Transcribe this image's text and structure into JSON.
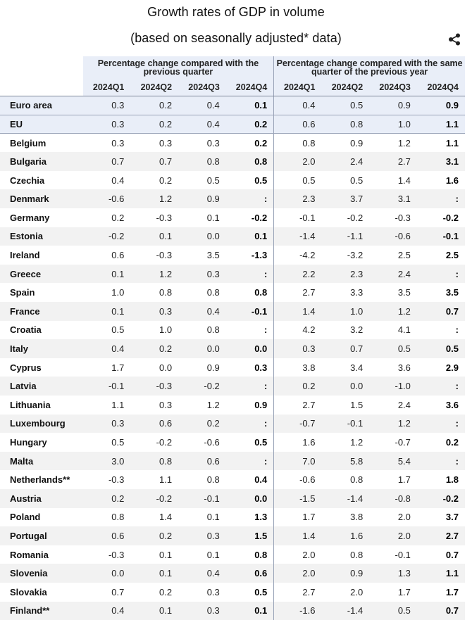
{
  "title": "Growth rates of GDP in volume",
  "subtitle": "(based on seasonally adjusted* data)",
  "share_icon": "share-icon",
  "group_headers": [
    "Percentage change compared with the previous quarter",
    "Percentage change compared with the same quarter of the previous year"
  ],
  "quarters": [
    "2024Q1",
    "2024Q2",
    "2024Q3",
    "2024Q4"
  ],
  "rows": [
    {
      "country": "Euro area",
      "qoq": [
        "0.3",
        "0.2",
        "0.4",
        "0.1"
      ],
      "yoy": [
        "0.4",
        "0.5",
        "0.9",
        "0.9"
      ]
    },
    {
      "country": "EU",
      "qoq": [
        "0.3",
        "0.2",
        "0.4",
        "0.2"
      ],
      "yoy": [
        "0.6",
        "0.8",
        "1.0",
        "1.1"
      ]
    },
    {
      "country": "Belgium",
      "qoq": [
        "0.3",
        "0.3",
        "0.3",
        "0.2"
      ],
      "yoy": [
        "0.8",
        "0.9",
        "1.2",
        "1.1"
      ]
    },
    {
      "country": "Bulgaria",
      "qoq": [
        "0.7",
        "0.7",
        "0.8",
        "0.8"
      ],
      "yoy": [
        "2.0",
        "2.4",
        "2.7",
        "3.1"
      ]
    },
    {
      "country": "Czechia",
      "qoq": [
        "0.4",
        "0.2",
        "0.5",
        "0.5"
      ],
      "yoy": [
        "0.5",
        "0.5",
        "1.4",
        "1.6"
      ]
    },
    {
      "country": "Denmark",
      "qoq": [
        "-0.6",
        "1.2",
        "0.9",
        ":"
      ],
      "yoy": [
        "2.3",
        "3.7",
        "3.1",
        ":"
      ]
    },
    {
      "country": "Germany",
      "qoq": [
        "0.2",
        "-0.3",
        "0.1",
        "-0.2"
      ],
      "yoy": [
        "-0.1",
        "-0.2",
        "-0.3",
        "-0.2"
      ]
    },
    {
      "country": "Estonia",
      "qoq": [
        "-0.2",
        "0.1",
        "0.0",
        "0.1"
      ],
      "yoy": [
        "-1.4",
        "-1.1",
        "-0.6",
        "-0.1"
      ]
    },
    {
      "country": "Ireland",
      "qoq": [
        "0.6",
        "-0.3",
        "3.5",
        "-1.3"
      ],
      "yoy": [
        "-4.2",
        "-3.2",
        "2.5",
        "2.5"
      ]
    },
    {
      "country": "Greece",
      "qoq": [
        "0.1",
        "1.2",
        "0.3",
        ":"
      ],
      "yoy": [
        "2.2",
        "2.3",
        "2.4",
        ":"
      ]
    },
    {
      "country": "Spain",
      "qoq": [
        "1.0",
        "0.8",
        "0.8",
        "0.8"
      ],
      "yoy": [
        "2.7",
        "3.3",
        "3.5",
        "3.5"
      ]
    },
    {
      "country": "France",
      "qoq": [
        "0.1",
        "0.3",
        "0.4",
        "-0.1"
      ],
      "yoy": [
        "1.4",
        "1.0",
        "1.2",
        "0.7"
      ]
    },
    {
      "country": "Croatia",
      "qoq": [
        "0.5",
        "1.0",
        "0.8",
        ":"
      ],
      "yoy": [
        "4.2",
        "3.2",
        "4.1",
        ":"
      ]
    },
    {
      "country": "Italy",
      "qoq": [
        "0.4",
        "0.2",
        "0.0",
        "0.0"
      ],
      "yoy": [
        "0.3",
        "0.7",
        "0.5",
        "0.5"
      ]
    },
    {
      "country": "Cyprus",
      "qoq": [
        "1.7",
        "0.0",
        "0.9",
        "0.3"
      ],
      "yoy": [
        "3.8",
        "3.4",
        "3.6",
        "2.9"
      ]
    },
    {
      "country": "Latvia",
      "qoq": [
        "-0.1",
        "-0.3",
        "-0.2",
        ":"
      ],
      "yoy": [
        "0.2",
        "0.0",
        "-1.0",
        ":"
      ]
    },
    {
      "country": "Lithuania",
      "qoq": [
        "1.1",
        "0.3",
        "1.2",
        "0.9"
      ],
      "yoy": [
        "2.7",
        "1.5",
        "2.4",
        "3.6"
      ]
    },
    {
      "country": "Luxembourg",
      "qoq": [
        "0.3",
        "0.6",
        "0.2",
        ":"
      ],
      "yoy": [
        "-0.7",
        "-0.1",
        "1.2",
        ":"
      ]
    },
    {
      "country": "Hungary",
      "qoq": [
        "0.5",
        "-0.2",
        "-0.6",
        "0.5"
      ],
      "yoy": [
        "1.6",
        "1.2",
        "-0.7",
        "0.2"
      ]
    },
    {
      "country": "Malta",
      "qoq": [
        "3.0",
        "0.8",
        "0.6",
        ":"
      ],
      "yoy": [
        "7.0",
        "5.8",
        "5.4",
        ":"
      ]
    },
    {
      "country": "Netherlands**",
      "qoq": [
        "-0.3",
        "1.1",
        "0.8",
        "0.4"
      ],
      "yoy": [
        "-0.6",
        "0.8",
        "1.7",
        "1.8"
      ]
    },
    {
      "country": "Austria",
      "qoq": [
        "0.2",
        "-0.2",
        "-0.1",
        "0.0"
      ],
      "yoy": [
        "-1.5",
        "-1.4",
        "-0.8",
        "-0.2"
      ]
    },
    {
      "country": "Poland",
      "qoq": [
        "0.8",
        "1.4",
        "0.1",
        "1.3"
      ],
      "yoy": [
        "1.7",
        "3.8",
        "2.0",
        "3.7"
      ]
    },
    {
      "country": "Portugal",
      "qoq": [
        "0.6",
        "0.2",
        "0.3",
        "1.5"
      ],
      "yoy": [
        "1.4",
        "1.6",
        "2.0",
        "2.7"
      ]
    },
    {
      "country": "Romania",
      "qoq": [
        "-0.3",
        "0.1",
        "0.1",
        "0.8"
      ],
      "yoy": [
        "2.0",
        "0.8",
        "-0.1",
        "0.7"
      ]
    },
    {
      "country": "Slovenia",
      "qoq": [
        "0.0",
        "0.1",
        "0.4",
        "0.6"
      ],
      "yoy": [
        "2.0",
        "0.9",
        "1.3",
        "1.1"
      ]
    },
    {
      "country": "Slovakia",
      "qoq": [
        "0.7",
        "0.2",
        "0.3",
        "0.5"
      ],
      "yoy": [
        "2.7",
        "2.0",
        "1.7",
        "1.7"
      ]
    },
    {
      "country": "Finland**",
      "qoq": [
        "0.4",
        "0.1",
        "0.3",
        "0.1"
      ],
      "yoy": [
        "-1.6",
        "-1.4",
        "0.5",
        "0.7"
      ]
    }
  ]
}
